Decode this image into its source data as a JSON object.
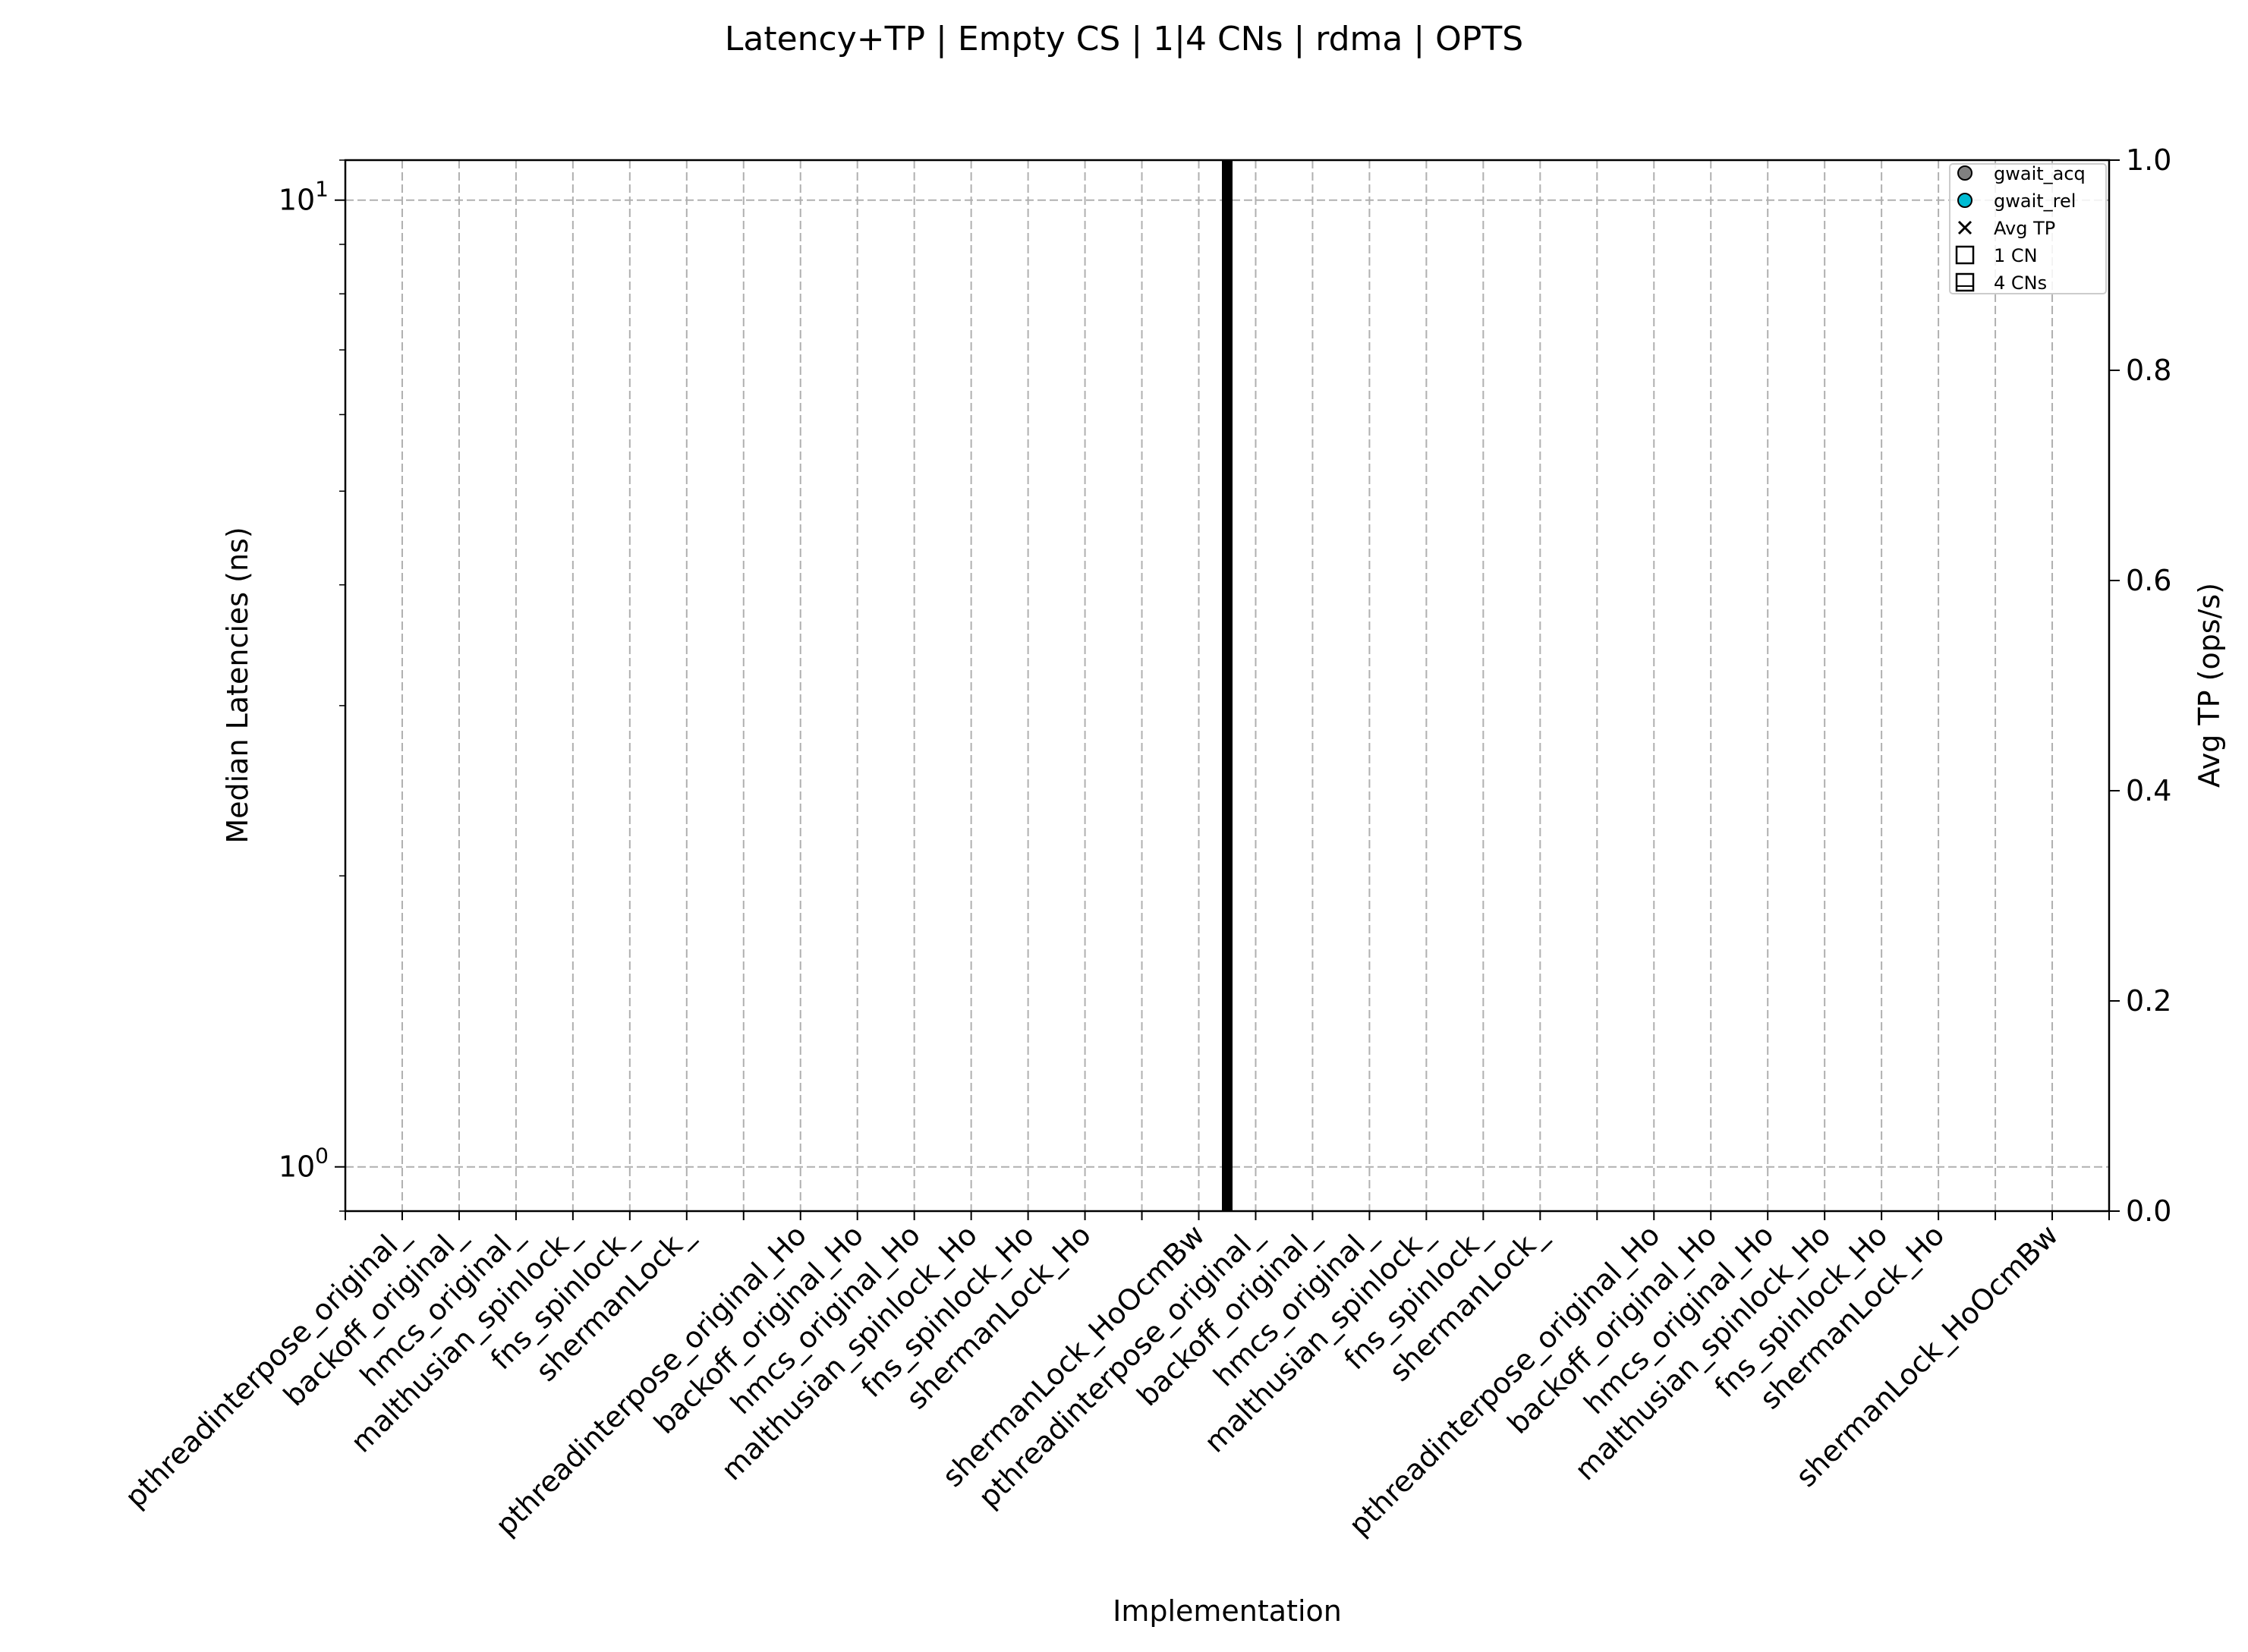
{
  "chart_data": {
    "type": "scatter",
    "title": "Latency+TP | Empty CS | 1|4 CNs | rdma | OPTS",
    "xlabel": "Implementation",
    "ylabel": "Median Latencies (ns)",
    "y2label": "Avg TP (ops/s)",
    "yscale": "log",
    "ylim": [
      0.9,
      11.0
    ],
    "y_ticks": [
      {
        "value": 1,
        "base": "10",
        "exp": "0"
      },
      {
        "value": 10,
        "base": "10",
        "exp": "1"
      }
    ],
    "y2lim": [
      0,
      1.0
    ],
    "y2_ticks": [
      "0.0",
      "0.2",
      "0.4",
      "0.6",
      "0.8",
      "1.0"
    ],
    "grid": true,
    "legend_position": "top-right",
    "separator_after_index": 14,
    "categories": [
      "pthreadinterpose_original_",
      "backoff_original_",
      "hmcs_original_",
      "malthusian_spinlock_",
      "fns_spinlock_",
      "shermanLock_",
      "",
      "pthreadinterpose_original_Ho",
      "backoff_original_Ho",
      "hmcs_original_Ho",
      "malthusian_spinlock_Ho",
      "fns_spinlock_Ho",
      "shermanLock_Ho",
      "",
      "shermanLock_HoOcmBw",
      "pthreadinterpose_original_",
      "backoff_original_",
      "hmcs_original_",
      "malthusian_spinlock_",
      "fns_spinlock_",
      "shermanLock_",
      "",
      "pthreadinterpose_original_Ho",
      "backoff_original_Ho",
      "hmcs_original_Ho",
      "malthusian_spinlock_Ho",
      "fns_spinlock_Ho",
      "shermanLock_Ho",
      "",
      "shermanLock_HoOcmBw"
    ],
    "legend": [
      {
        "label": "gwait_acq",
        "marker": "circle",
        "color": "#808080"
      },
      {
        "label": "gwait_rel",
        "marker": "circle",
        "color": "#00bcd4"
      },
      {
        "label": "Avg TP",
        "marker": "x",
        "color": "#000000"
      },
      {
        "label": "1 CN",
        "marker": "square",
        "color": "#ffffff"
      },
      {
        "label": "4 CNs",
        "marker": "square-half",
        "color": "#ffffff"
      }
    ],
    "series": []
  }
}
